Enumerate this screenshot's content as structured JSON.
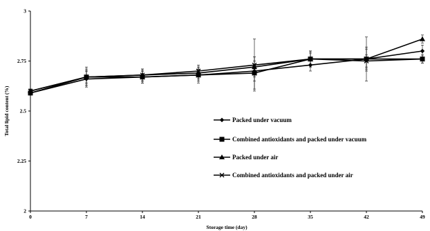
{
  "chart_data": {
    "type": "line",
    "title": "",
    "xlabel": "Storage time (day)",
    "ylabel": "Total lipid content (%)",
    "x": [
      0,
      7,
      14,
      21,
      28,
      35,
      42,
      49
    ],
    "x_ticks": [
      "0",
      "7",
      "14",
      "21",
      "28",
      "35",
      "42",
      "49"
    ],
    "xlim": [
      0,
      49
    ],
    "ylim": [
      2,
      3
    ],
    "y_ticks": [
      "2",
      "2.25",
      "2.5",
      "2.75",
      "3"
    ],
    "y_tick_values": [
      2,
      2.25,
      2.5,
      2.75,
      3
    ],
    "grid": false,
    "legend_position": "center-right",
    "line_color": "#000000",
    "series": [
      {
        "name": "Packed under vacuum",
        "marker": "diamond",
        "values": [
          2.59,
          2.66,
          2.67,
          2.68,
          2.7,
          2.73,
          2.76,
          2.8
        ],
        "errors": [
          0.01,
          0.04,
          0.03,
          0.04,
          0.05,
          0.03,
          0.05,
          0.03
        ]
      },
      {
        "name": "Combined antioxidants and packed under vacuum",
        "marker": "square",
        "values": [
          2.59,
          2.67,
          2.67,
          2.68,
          2.69,
          2.76,
          2.76,
          2.76
        ],
        "errors": [
          0.01,
          0.03,
          0.03,
          0.03,
          0.08,
          0.03,
          0.06,
          0.02
        ]
      },
      {
        "name": "Packed under air",
        "marker": "triangle",
        "values": [
          2.6,
          2.67,
          2.68,
          2.69,
          2.72,
          2.76,
          2.76,
          2.86
        ],
        "errors": [
          0.01,
          0.04,
          0.03,
          0.03,
          0.05,
          0.04,
          0.11,
          0.02
        ]
      },
      {
        "name": "Combined antioxidants and packed under air",
        "marker": "x",
        "values": [
          2.6,
          2.67,
          2.68,
          2.7,
          2.73,
          2.76,
          2.75,
          2.76
        ],
        "errors": [
          0.01,
          0.05,
          0.03,
          0.03,
          0.13,
          0.04,
          0.03,
          0.02
        ]
      }
    ]
  }
}
